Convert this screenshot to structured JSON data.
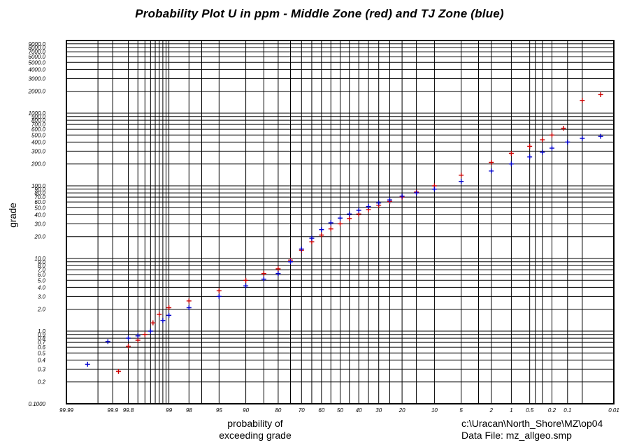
{
  "chart_data": {
    "type": "scatter",
    "title": "Probability Plot U in ppm - Middle Zone (red) and TJ Zone (blue)",
    "xlabel": [
      "probability of",
      "exceeding grade"
    ],
    "ylabel": "grade",
    "y_scale": "log",
    "x_scale": "probability",
    "ylim": [
      0.1,
      10000
    ],
    "xlim": [
      99.99,
      0.01
    ],
    "grid": true,
    "y_ticks": [
      {
        "value": 0.1,
        "label": "0.1000"
      },
      {
        "value": 0.2,
        "label": "0.2"
      },
      {
        "value": 0.3,
        "label": "0.3"
      },
      {
        "value": 0.4,
        "label": "0.4"
      },
      {
        "value": 0.5,
        "label": "0.5"
      },
      {
        "value": 0.6,
        "label": "0.6"
      },
      {
        "value": 0.7,
        "label": "0.7"
      },
      {
        "value": 0.8,
        "label": "0.8"
      },
      {
        "value": 0.9,
        "label": "0.9"
      },
      {
        "value": 1,
        "label": "1.0"
      },
      {
        "value": 2,
        "label": "2.0"
      },
      {
        "value": 3,
        "label": "3.0"
      },
      {
        "value": 4,
        "label": "4.0"
      },
      {
        "value": 5,
        "label": "5.0"
      },
      {
        "value": 6,
        "label": "6.0"
      },
      {
        "value": 7,
        "label": "7.0"
      },
      {
        "value": 8,
        "label": "8.0"
      },
      {
        "value": 9,
        "label": "9.0"
      },
      {
        "value": 10,
        "label": "10.0"
      },
      {
        "value": 20,
        "label": "20.0"
      },
      {
        "value": 30,
        "label": "30.0"
      },
      {
        "value": 40,
        "label": "40.0"
      },
      {
        "value": 50,
        "label": "50.0"
      },
      {
        "value": 60,
        "label": "60.0"
      },
      {
        "value": 70,
        "label": "70.0"
      },
      {
        "value": 80,
        "label": "80.0"
      },
      {
        "value": 90,
        "label": "90.0"
      },
      {
        "value": 100,
        "label": "100.0"
      },
      {
        "value": 200,
        "label": "200.0"
      },
      {
        "value": 300,
        "label": "300.0"
      },
      {
        "value": 400,
        "label": "400.0"
      },
      {
        "value": 500,
        "label": "500.0"
      },
      {
        "value": 600,
        "label": "600.0"
      },
      {
        "value": 700,
        "label": "700.0"
      },
      {
        "value": 800,
        "label": "800.0"
      },
      {
        "value": 900,
        "label": "900.0"
      },
      {
        "value": 1000,
        "label": "1000.0"
      },
      {
        "value": 2000,
        "label": "2000.0"
      },
      {
        "value": 3000,
        "label": "3000.0"
      },
      {
        "value": 4000,
        "label": "4000.0"
      },
      {
        "value": 5000,
        "label": "5000.0"
      },
      {
        "value": 6000,
        "label": "6000.0"
      },
      {
        "value": 7000,
        "label": "7000.0"
      },
      {
        "value": 8000,
        "label": "8000.0"
      },
      {
        "value": 9000,
        "label": "9000.0"
      }
    ],
    "x_ticks": [
      {
        "value": 99.99,
        "label": "99.99"
      },
      {
        "value": 99.9,
        "label": "99.9"
      },
      {
        "value": 99.8,
        "label": "99.8"
      },
      {
        "value": 99,
        "label": "99"
      },
      {
        "value": 98,
        "label": "98"
      },
      {
        "value": 95,
        "label": "95"
      },
      {
        "value": 90,
        "label": "90"
      },
      {
        "value": 80,
        "label": "80"
      },
      {
        "value": 70,
        "label": "70"
      },
      {
        "value": 60,
        "label": "60"
      },
      {
        "value": 50,
        "label": "50"
      },
      {
        "value": 40,
        "label": "40"
      },
      {
        "value": 30,
        "label": "30"
      },
      {
        "value": 20,
        "label": "20"
      },
      {
        "value": 10,
        "label": "10"
      },
      {
        "value": 5,
        "label": "5"
      },
      {
        "value": 2,
        "label": "2"
      },
      {
        "value": 1,
        "label": "1"
      },
      {
        "value": 0.5,
        "label": "0.5"
      },
      {
        "value": 0.2,
        "label": "0.2"
      },
      {
        "value": 0.1,
        "label": "0.1"
      },
      {
        "value": 0.01,
        "label": "0.01"
      }
    ],
    "x_minor_grid": [
      99.95,
      99.7,
      99.6,
      99.5,
      99.4,
      99.3,
      99.2,
      99.1,
      97,
      85,
      75,
      65,
      55,
      45,
      35,
      25,
      15,
      3,
      0.3,
      0.4,
      0.05
    ],
    "series": [
      {
        "color": "#cc0000",
        "marker": "+",
        "points": [
          [
            99.87,
            0.28
          ],
          [
            99.8,
            0.62
          ],
          [
            99.7,
            0.75
          ],
          [
            99.6,
            0.9
          ],
          [
            99.45,
            1.3
          ],
          [
            99.3,
            1.7
          ],
          [
            99,
            2.1
          ],
          [
            98,
            2.6
          ],
          [
            95,
            3.6
          ],
          [
            90,
            5.0
          ],
          [
            85,
            6.2
          ],
          [
            80,
            7.2
          ],
          [
            75,
            9.5
          ],
          [
            70,
            13.0
          ],
          [
            65,
            17.0
          ],
          [
            60,
            21.0
          ],
          [
            55,
            25.5
          ],
          [
            50,
            30.0
          ],
          [
            45,
            35.5
          ],
          [
            40,
            41.0
          ],
          [
            35,
            47.0
          ],
          [
            30,
            54.0
          ],
          [
            25,
            61.0
          ],
          [
            20,
            70.0
          ],
          [
            15,
            82.0
          ],
          [
            10,
            100.0
          ],
          [
            5,
            140.0
          ],
          [
            2,
            210.0
          ],
          [
            1,
            280.0
          ],
          [
            0.5,
            350.0
          ],
          [
            0.3,
            430.0
          ],
          [
            0.2,
            500.0
          ],
          [
            0.12,
            620.0
          ],
          [
            0.05,
            1500.0
          ],
          [
            0.02,
            1800.0
          ]
        ]
      },
      {
        "color": "#0000cc",
        "marker": "+",
        "points": [
          [
            99.97,
            0.35
          ],
          [
            99.92,
            0.72
          ],
          [
            99.8,
            0.8
          ],
          [
            99.7,
            0.86
          ],
          [
            99.5,
            1.0
          ],
          [
            99.2,
            1.4
          ],
          [
            99,
            1.65
          ],
          [
            98,
            2.1
          ],
          [
            95,
            3.0
          ],
          [
            90,
            4.2
          ],
          [
            85,
            5.2
          ],
          [
            80,
            6.2
          ],
          [
            75,
            9.0
          ],
          [
            70,
            13.5
          ],
          [
            65,
            19.0
          ],
          [
            60,
            25.0
          ],
          [
            55,
            31.0
          ],
          [
            50,
            36.0
          ],
          [
            45,
            41.0
          ],
          [
            40,
            46.0
          ],
          [
            35,
            52.0
          ],
          [
            30,
            58.0
          ],
          [
            25,
            64.0
          ],
          [
            20,
            72.0
          ],
          [
            15,
            80.0
          ],
          [
            10,
            90.0
          ],
          [
            5,
            115.0
          ],
          [
            2,
            160.0
          ],
          [
            1,
            200.0
          ],
          [
            0.5,
            250.0
          ],
          [
            0.3,
            290.0
          ],
          [
            0.2,
            330.0
          ],
          [
            0.1,
            400.0
          ],
          [
            0.05,
            450.0
          ],
          [
            0.02,
            480.0
          ]
        ]
      }
    ]
  },
  "file_info": {
    "path": "c:\\Uracan\\North_Shore\\MZ\\op04",
    "data_file": "Data File: mz_allgeo.smp"
  }
}
